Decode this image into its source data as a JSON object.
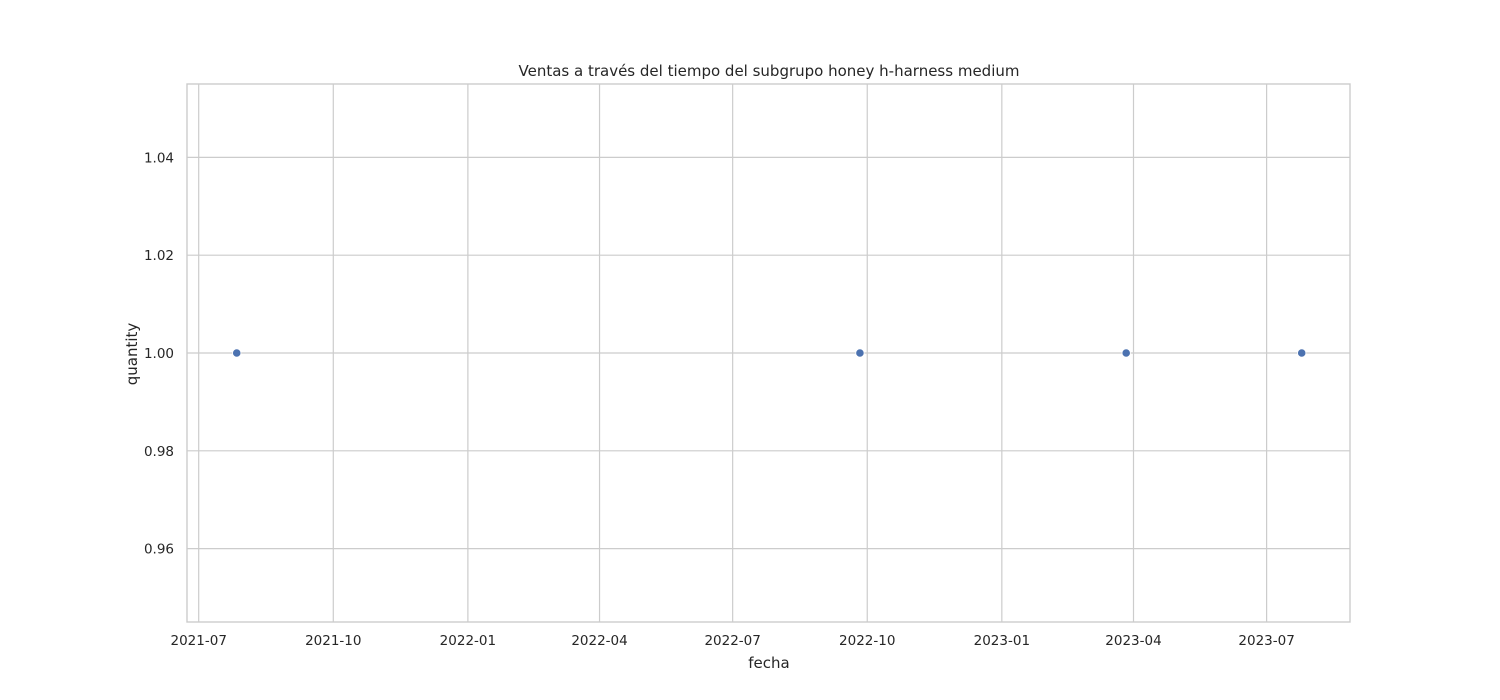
{
  "chart_data": {
    "type": "scatter",
    "title": "Ventas a través del tiempo del subgrupo honey h-harness medium",
    "xlabel": "fecha",
    "ylabel": "quantity",
    "x": [
      "2021-07-27",
      "2022-09-26",
      "2023-03-27",
      "2023-07-25"
    ],
    "y": [
      1.0,
      1.0,
      1.0,
      1.0
    ],
    "xlim": [
      "2021-06-23",
      "2023-08-27"
    ],
    "ylim": [
      0.945,
      1.055
    ],
    "xticks": [
      "2021-07",
      "2021-10",
      "2022-01",
      "2022-04",
      "2022-07",
      "2022-10",
      "2023-01",
      "2023-04",
      "2023-07"
    ],
    "yticks": [
      0.96,
      0.98,
      1.0,
      1.02,
      1.04
    ],
    "ytick_labels": [
      "0.96",
      "0.98",
      "1.00",
      "1.02",
      "1.04"
    ],
    "grid": true,
    "marker_color": "#4c72b0"
  }
}
